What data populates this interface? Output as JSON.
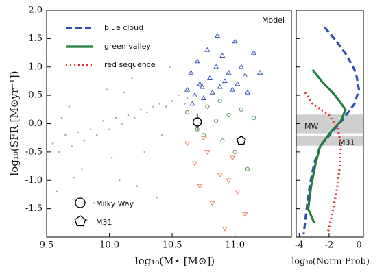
{
  "chart_data": [
    {
      "type": "scatter",
      "xlabel": "log₁₀(M⋆ [M⊙])",
      "ylabel": "log₁₀(SFR [M⊙yr⁻¹])",
      "annotation": "Model",
      "xlim": [
        9.5,
        11.45
      ],
      "ylim": [
        -2.0,
        2.0
      ],
      "xticks": [
        9.5,
        {
          "value": 10,
          "label": "10.0"
        },
        10.5,
        {
          "value": 11,
          "label": "11.0"
        }
      ],
      "yticks": [
        {
          "value": 2,
          "label": "2.0"
        },
        1.5,
        {
          "value": 1,
          "label": "1.0"
        },
        0.5,
        {
          "value": 0,
          "label": "0.0"
        },
        -0.5,
        {
          "value": -1,
          "label": "-1.0"
        },
        -1.5
      ],
      "series": [
        {
          "marker": "dot",
          "color": "#a8a8a8",
          "x": [
            9.55,
            9.6,
            9.65,
            9.7,
            9.75,
            9.8,
            9.85,
            9.9,
            9.95,
            10.0,
            10.05,
            10.1,
            10.15,
            10.2,
            10.25,
            10.3,
            10.35,
            10.4,
            10.45,
            10.5,
            9.58,
            9.68,
            9.78,
            9.88,
            9.98,
            10.08,
            10.18,
            10.28,
            10.38,
            10.48,
            9.62,
            9.82,
            10.02,
            10.22,
            10.42,
            10.55,
            10.6,
            10.62,
            9.72,
            10.12
          ],
          "y": [
            -0.35,
            -0.5,
            -0.2,
            -0.4,
            -0.15,
            -0.3,
            -0.1,
            -0.2,
            0.05,
            -0.1,
            0.1,
            0.0,
            0.15,
            0.1,
            0.25,
            0.2,
            0.3,
            0.35,
            0.3,
            0.4,
            -1.2,
            0.3,
            -0.8,
            -1.4,
            0.6,
            -1.0,
            0.8,
            -0.5,
            -1.3,
            1.0,
            0.1,
            -1.7,
            -0.6,
            -1.1,
            -0.2,
            0.5,
            0.35,
            0.45,
            -0.95,
            0.55
          ]
        },
        {
          "marker": "triangle-up",
          "color": "#3a55b8",
          "x": [
            10.62,
            10.65,
            10.68,
            10.7,
            10.72,
            10.75,
            10.78,
            10.8,
            10.82,
            10.85,
            10.88,
            10.9,
            10.92,
            10.95,
            10.98,
            11.0,
            11.02,
            11.05,
            11.08,
            11.1,
            11.15,
            11.2,
            10.66,
            10.74,
            10.86
          ],
          "y": [
            0.6,
            0.9,
            0.5,
            1.1,
            0.7,
            0.45,
            1.3,
            0.8,
            0.55,
            1.0,
            0.65,
            1.2,
            0.75,
            0.9,
            0.6,
            1.45,
            0.7,
            1.0,
            0.85,
            0.55,
            1.25,
            0.9,
            0.35,
            0.65,
            1.55
          ]
        },
        {
          "marker": "circle",
          "color": "#5a9a5a",
          "x": [
            10.62,
            10.7,
            10.78,
            10.85,
            10.9,
            10.95,
            11.0,
            11.05,
            11.1,
            11.15,
            10.75,
            10.88
          ],
          "y": [
            0.2,
            -0.1,
            0.3,
            0.05,
            -0.3,
            0.15,
            -0.5,
            0.25,
            -0.8,
            0.1,
            -0.2,
            0.4
          ]
        },
        {
          "marker": "triangle-down",
          "color": "#e8875a",
          "x": [
            10.62,
            10.68,
            10.72,
            10.78,
            10.82,
            10.88,
            10.92,
            10.98,
            11.02,
            11.08,
            10.75,
            10.95
          ],
          "y": [
            -0.35,
            -0.7,
            -1.1,
            -0.5,
            -1.4,
            -0.9,
            -1.85,
            -0.6,
            -1.2,
            -1.6,
            -0.25,
            -1.0
          ]
        }
      ],
      "objects": [
        {
          "name": "Milky Way",
          "marker": "circle",
          "x": 10.7,
          "y": 0.03,
          "err": 0.15
        },
        {
          "name": "M31",
          "marker": "pentagon",
          "x": 11.05,
          "y": -0.3
        }
      ]
    },
    {
      "type": "line",
      "xlabel": "log₁₀(Norm Prob)",
      "xlim": [
        -4.2,
        0.3
      ],
      "ylim": [
        -2.0,
        2.0
      ],
      "xticks": [
        -4,
        -2,
        0
      ],
      "bands": [
        {
          "label": "MW",
          "from": -0.17,
          "to": 0.16
        },
        {
          "label": "M31",
          "from": -0.39,
          "to": -0.21
        }
      ],
      "legend": "upper left",
      "series": [
        {
          "name": "blue cloud",
          "color": "#2f4fb0",
          "dash": "9,5",
          "x": [
            -2.3,
            -1.5,
            -0.8,
            -0.2,
            0.0,
            -0.3,
            -1.0,
            -1.8,
            -2.6,
            -3.0,
            -3.3,
            -3.5,
            -3.7
          ],
          "y": [
            1.7,
            1.45,
            1.2,
            0.9,
            0.6,
            0.35,
            0.1,
            -0.15,
            -0.4,
            -0.7,
            -1.1,
            -1.5,
            -1.95
          ]
        },
        {
          "name": "green valley",
          "color": "#1f7f3a",
          "dash": "none",
          "x": [
            -3.1,
            -2.5,
            -1.6,
            -0.9,
            -1.2,
            -1.9,
            -2.6,
            -2.9,
            -3.2,
            -3.4,
            -3.0
          ],
          "y": [
            0.95,
            0.75,
            0.5,
            0.25,
            0.05,
            -0.15,
            -0.4,
            -0.7,
            -1.1,
            -1.5,
            -1.75
          ]
        },
        {
          "name": "red sequence",
          "color": "#e03030",
          "dash": "2,4",
          "x": [
            -3.6,
            -3.1,
            -2.0,
            -1.4,
            -1.2,
            -1.3,
            -1.5,
            -1.8,
            -2.1
          ],
          "y": [
            0.55,
            0.35,
            0.15,
            -0.1,
            -0.4,
            -0.8,
            -1.2,
            -1.6,
            -1.95
          ]
        }
      ]
    }
  ]
}
